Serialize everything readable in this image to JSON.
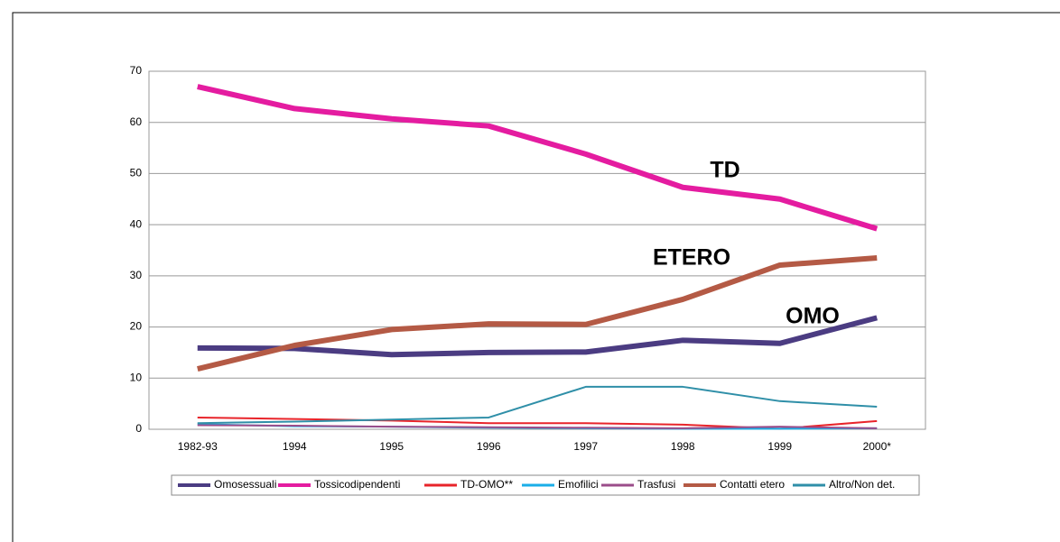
{
  "chart_data": {
    "type": "line",
    "categories": [
      "1982-93",
      "1994",
      "1995",
      "1996",
      "1997",
      "1998",
      "1999",
      "2000*"
    ],
    "series": [
      {
        "name": "Omosessuali",
        "color": "#4b3c82",
        "values": [
          15.9,
          15.8,
          14.6,
          15,
          15.1,
          17.4,
          16.8,
          21.8
        ]
      },
      {
        "name": "Tossicodipendenti",
        "color": "#e41ca0",
        "values": [
          67,
          62.7,
          60.7,
          59.3,
          53.8,
          47.3,
          45,
          39.2
        ]
      },
      {
        "name": "TD-OMO**",
        "color": "#e8242a",
        "values": [
          2.3,
          2,
          1.7,
          1.2,
          1.2,
          0.9,
          0.1,
          1.6
        ]
      },
      {
        "name": "Emofilici",
        "color": "#1aaee8",
        "values": [
          1,
          0.6,
          0.5,
          0.3,
          0.2,
          0.1,
          0.1,
          0.2
        ]
      },
      {
        "name": "Trasfusi",
        "color": "#9b4d8a",
        "values": [
          0.8,
          0.7,
          0.5,
          0.4,
          0.3,
          0.2,
          0.5,
          0.2
        ]
      },
      {
        "name": "Contatti etero",
        "color": "#b45a45",
        "values": [
          11.8,
          16.4,
          19.5,
          20.6,
          20.5,
          25.4,
          32.1,
          33.5
        ]
      },
      {
        "name": "Altro/Non det.",
        "color": "#2f8fa8",
        "values": [
          1.2,
          1.5,
          1.9,
          2.3,
          8.3,
          8.3,
          5.5,
          4.4
        ]
      }
    ],
    "annotations": [
      "TD",
      "ETERO",
      "OMO"
    ],
    "ylim": [
      0,
      70
    ],
    "yticks": [
      0,
      10,
      20,
      30,
      40,
      50,
      60,
      70
    ],
    "grid": true,
    "legend": "bottom"
  }
}
